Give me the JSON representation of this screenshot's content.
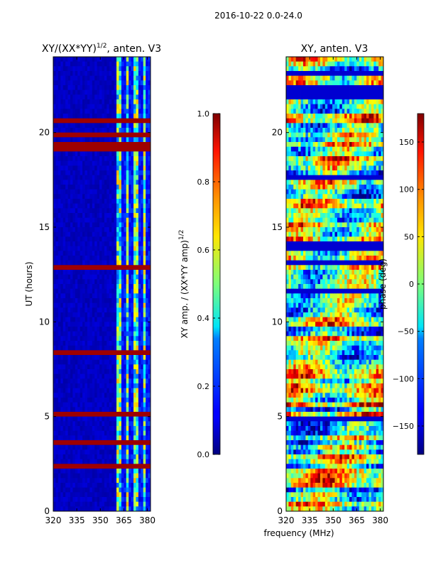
{
  "suptitle": "2016-10-22 0.0-24.0",
  "shared_xlabel": "frequency (MHz)",
  "chart_data": [
    {
      "type": "heatmap",
      "title_main": "XY/(XX*YY)",
      "title_sup": "1/2",
      "title_suffix": ", anten. V3",
      "ylabel": "UT (hours)",
      "xlim": [
        320,
        382
      ],
      "ylim": [
        0,
        24
      ],
      "xticks": [
        320,
        335,
        350,
        365,
        380
      ],
      "yticks": [
        0,
        5,
        10,
        15,
        20
      ],
      "colorbar": {
        "label_main": "XY amp. / (XX*YY amp)",
        "label_sup": "1/2",
        "range": [
          0.0,
          1.0
        ],
        "ticks": [
          "0.0",
          "0.2",
          "0.4",
          "0.6",
          "0.8",
          "1.0"
        ],
        "tick_values": [
          0.0,
          0.2,
          0.4,
          0.6,
          0.8,
          1.0
        ]
      }
    },
    {
      "type": "heatmap",
      "title": "XY, anten. V3",
      "xlim": [
        320,
        382
      ],
      "ylim": [
        0,
        24
      ],
      "xticks": [
        320,
        335,
        350,
        365,
        380
      ],
      "yticks": [
        0,
        5,
        10,
        15,
        20
      ],
      "colorbar": {
        "label": "phase (deg)",
        "range": [
          -180,
          180
        ],
        "ticks": [
          "150",
          "100",
          "50",
          "0",
          "−50",
          "−100",
          "−150"
        ],
        "tick_values": [
          150,
          100,
          50,
          0,
          -50,
          -100,
          -150
        ]
      }
    }
  ]
}
